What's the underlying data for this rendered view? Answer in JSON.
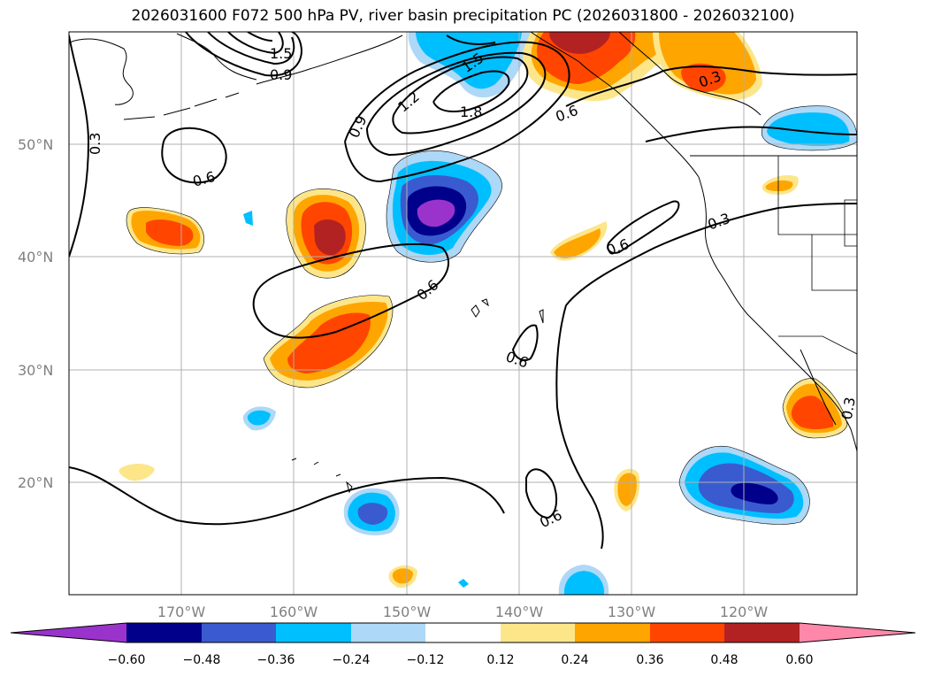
{
  "title": "2026031600 F072 500 hPa PV, river basin precipitation PC (2026031800 - 2026032100)",
  "latitudes": [
    {
      "value": 50,
      "label": "50°N"
    },
    {
      "value": 40,
      "label": "40°N"
    },
    {
      "value": 30,
      "label": "30°N"
    },
    {
      "value": 20,
      "label": "20°N"
    }
  ],
  "longitudes": [
    {
      "value": -170,
      "label": "170°W"
    },
    {
      "value": -160,
      "label": "160°W"
    },
    {
      "value": -150,
      "label": "150°W"
    },
    {
      "value": -140,
      "label": "140°W"
    },
    {
      "value": -130,
      "label": "130°W"
    },
    {
      "value": -120,
      "label": "120°W"
    }
  ],
  "colorbar": {
    "colors": [
      "#9a33cc",
      "#00008b",
      "#3a5bd0",
      "#00bfff",
      "#add8f7",
      "#ffffff",
      "#fde68a",
      "#ffa500",
      "#ff4500",
      "#b22222",
      "#ff88aa"
    ],
    "ticks": [
      "−0.60",
      "−0.48",
      "−0.36",
      "−0.24",
      "−0.12",
      "0.12",
      "0.24",
      "0.36",
      "0.48",
      "0.60"
    ]
  },
  "pv_contour_labels": [
    "1.5",
    "0.9",
    "1.5",
    "1.2",
    "1.8",
    "0.9",
    "0.6",
    "0.3",
    "0.3",
    "0.6",
    "0.6",
    "0.6",
    "0.3",
    "0.6",
    "0.6",
    "0.3"
  ]
}
